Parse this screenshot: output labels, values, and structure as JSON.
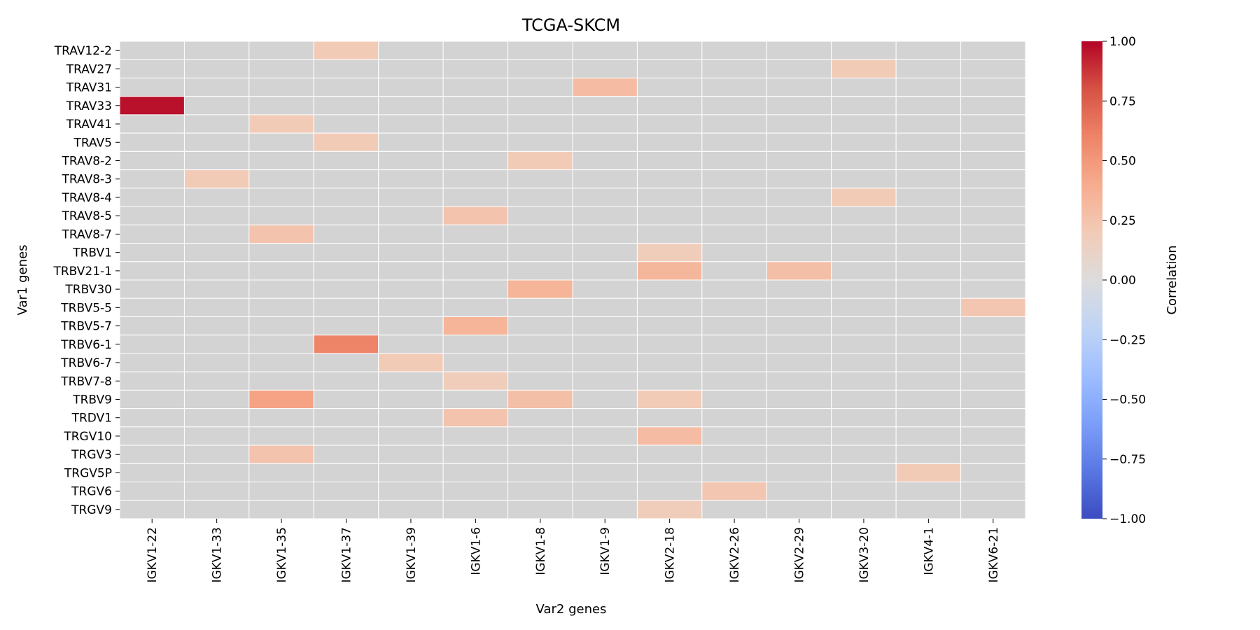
{
  "chart_data": {
    "type": "heatmap",
    "title": "TCGA-SKCM",
    "xlabel": "Var2 genes",
    "ylabel": "Var1 genes",
    "x_categories": [
      "IGKV1-22",
      "IGKV1-33",
      "IGKV1-35",
      "IGKV1-37",
      "IGKV1-39",
      "IGKV1-6",
      "IGKV1-8",
      "IGKV1-9",
      "IGKV2-18",
      "IGKV2-26",
      "IGKV2-29",
      "IGKV3-20",
      "IGKV4-1",
      "IGKV6-21"
    ],
    "y_categories": [
      "TRAV12-2",
      "TRAV27",
      "TRAV31",
      "TRAV33",
      "TRAV41",
      "TRAV5",
      "TRAV8-2",
      "TRAV8-3",
      "TRAV8-4",
      "TRAV8-5",
      "TRAV8-7",
      "TRBV1",
      "TRBV21-1",
      "TRBV30",
      "TRBV5-5",
      "TRBV5-7",
      "TRBV6-1",
      "TRBV6-7",
      "TRBV7-8",
      "TRBV9",
      "TRDV1",
      "TRGV10",
      "TRGV3",
      "TRGV5P",
      "TRGV6",
      "TRGV9"
    ],
    "cells": [
      {
        "row": "TRAV12-2",
        "col": "IGKV1-37",
        "value": 0.2
      },
      {
        "row": "TRAV27",
        "col": "IGKV3-20",
        "value": 0.2
      },
      {
        "row": "TRAV31",
        "col": "IGKV1-9",
        "value": 0.3
      },
      {
        "row": "TRAV33",
        "col": "IGKV1-22",
        "value": 0.97
      },
      {
        "row": "TRAV41",
        "col": "IGKV1-35",
        "value": 0.2
      },
      {
        "row": "TRAV5",
        "col": "IGKV1-37",
        "value": 0.2
      },
      {
        "row": "TRAV8-2",
        "col": "IGKV1-8",
        "value": 0.2
      },
      {
        "row": "TRAV8-3",
        "col": "IGKV1-33",
        "value": 0.2
      },
      {
        "row": "TRAV8-4",
        "col": "IGKV3-20",
        "value": 0.2
      },
      {
        "row": "TRAV8-5",
        "col": "IGKV1-6",
        "value": 0.25
      },
      {
        "row": "TRAV8-7",
        "col": "IGKV1-35",
        "value": 0.25
      },
      {
        "row": "TRBV1",
        "col": "IGKV2-18",
        "value": 0.18
      },
      {
        "row": "TRBV21-1",
        "col": "IGKV2-18",
        "value": 0.33
      },
      {
        "row": "TRBV21-1",
        "col": "IGKV2-29",
        "value": 0.28
      },
      {
        "row": "TRBV30",
        "col": "IGKV1-8",
        "value": 0.35
      },
      {
        "row": "TRBV5-5",
        "col": "IGKV6-21",
        "value": 0.23
      },
      {
        "row": "TRBV5-7",
        "col": "IGKV1-6",
        "value": 0.35
      },
      {
        "row": "TRBV6-1",
        "col": "IGKV1-37",
        "value": 0.6
      },
      {
        "row": "TRBV6-7",
        "col": "IGKV1-39",
        "value": 0.2
      },
      {
        "row": "TRBV7-8",
        "col": "IGKV1-6",
        "value": 0.18
      },
      {
        "row": "TRBV9",
        "col": "IGKV1-35",
        "value": 0.45
      },
      {
        "row": "TRBV9",
        "col": "IGKV1-8",
        "value": 0.28
      },
      {
        "row": "TRBV9",
        "col": "IGKV2-18",
        "value": 0.2
      },
      {
        "row": "TRDV1",
        "col": "IGKV1-6",
        "value": 0.25
      },
      {
        "row": "TRGV10",
        "col": "IGKV2-18",
        "value": 0.3
      },
      {
        "row": "TRGV3",
        "col": "IGKV1-35",
        "value": 0.25
      },
      {
        "row": "TRGV5P",
        "col": "IGKV4-1",
        "value": 0.2
      },
      {
        "row": "TRGV6",
        "col": "IGKV2-26",
        "value": 0.23
      },
      {
        "row": "TRGV9",
        "col": "IGKV2-18",
        "value": 0.18
      }
    ],
    "missing_color": "#d3d3d3",
    "colormap": "coolwarm",
    "colormap_stops": [
      "#3b4cc0",
      "#5977e3",
      "#7b9ff9",
      "#9ebeff",
      "#c0d4f5",
      "#dddcdc",
      "#f2cbb7",
      "#f7ac8e",
      "#ee8468",
      "#d65244",
      "#b40426"
    ],
    "colorbar": {
      "label": "Correlation",
      "range": [
        -1.0,
        1.0
      ],
      "ticks": [
        "1.00",
        "0.75",
        "0.50",
        "0.25",
        "0.00",
        "−0.25",
        "−0.50",
        "−0.75",
        "−1.00"
      ]
    }
  }
}
